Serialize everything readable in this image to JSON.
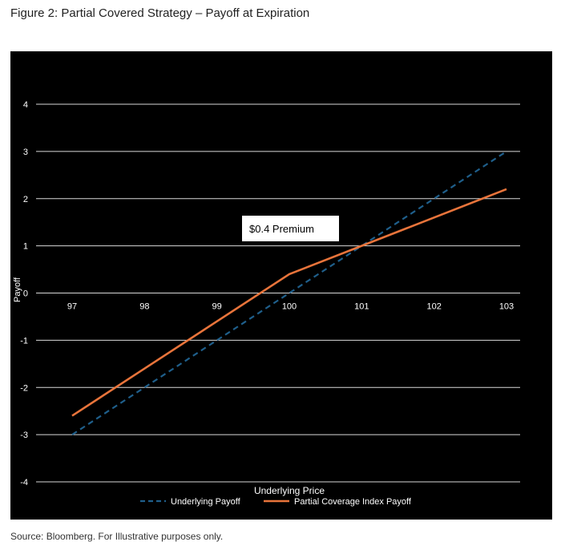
{
  "figure_title": "Figure 2: Partial Covered Strategy – Payoff at Expiration",
  "source_note": "Source: Bloomberg. For Illustrative purposes only.",
  "chart_data": {
    "type": "line",
    "title": "",
    "xlabel": "Underlying Price",
    "ylabel": "Payoff",
    "x": [
      97,
      98,
      99,
      100,
      101,
      102,
      103
    ],
    "xlim": [
      97,
      103
    ],
    "ylim": [
      -4,
      4
    ],
    "y_ticks": [
      4,
      3,
      2,
      1,
      0,
      -1,
      -2,
      -3,
      -4
    ],
    "grid": true,
    "legend_position": "bottom",
    "series": [
      {
        "name": "Underlying Payoff",
        "values": [
          -3,
          -2,
          -1,
          0,
          1,
          2,
          3
        ],
        "color": "#1f5f8b",
        "style": "dashed"
      },
      {
        "name": "Partial Coverage Index Payoff",
        "values": [
          -2.6,
          -1.6,
          -0.6,
          0.4,
          1.0,
          1.6,
          2.2
        ],
        "color": "#e8743b",
        "style": "solid"
      }
    ],
    "annotation": {
      "text": "$0.4 Premium"
    },
    "background": "#000000",
    "text_color": "#ffffff"
  }
}
